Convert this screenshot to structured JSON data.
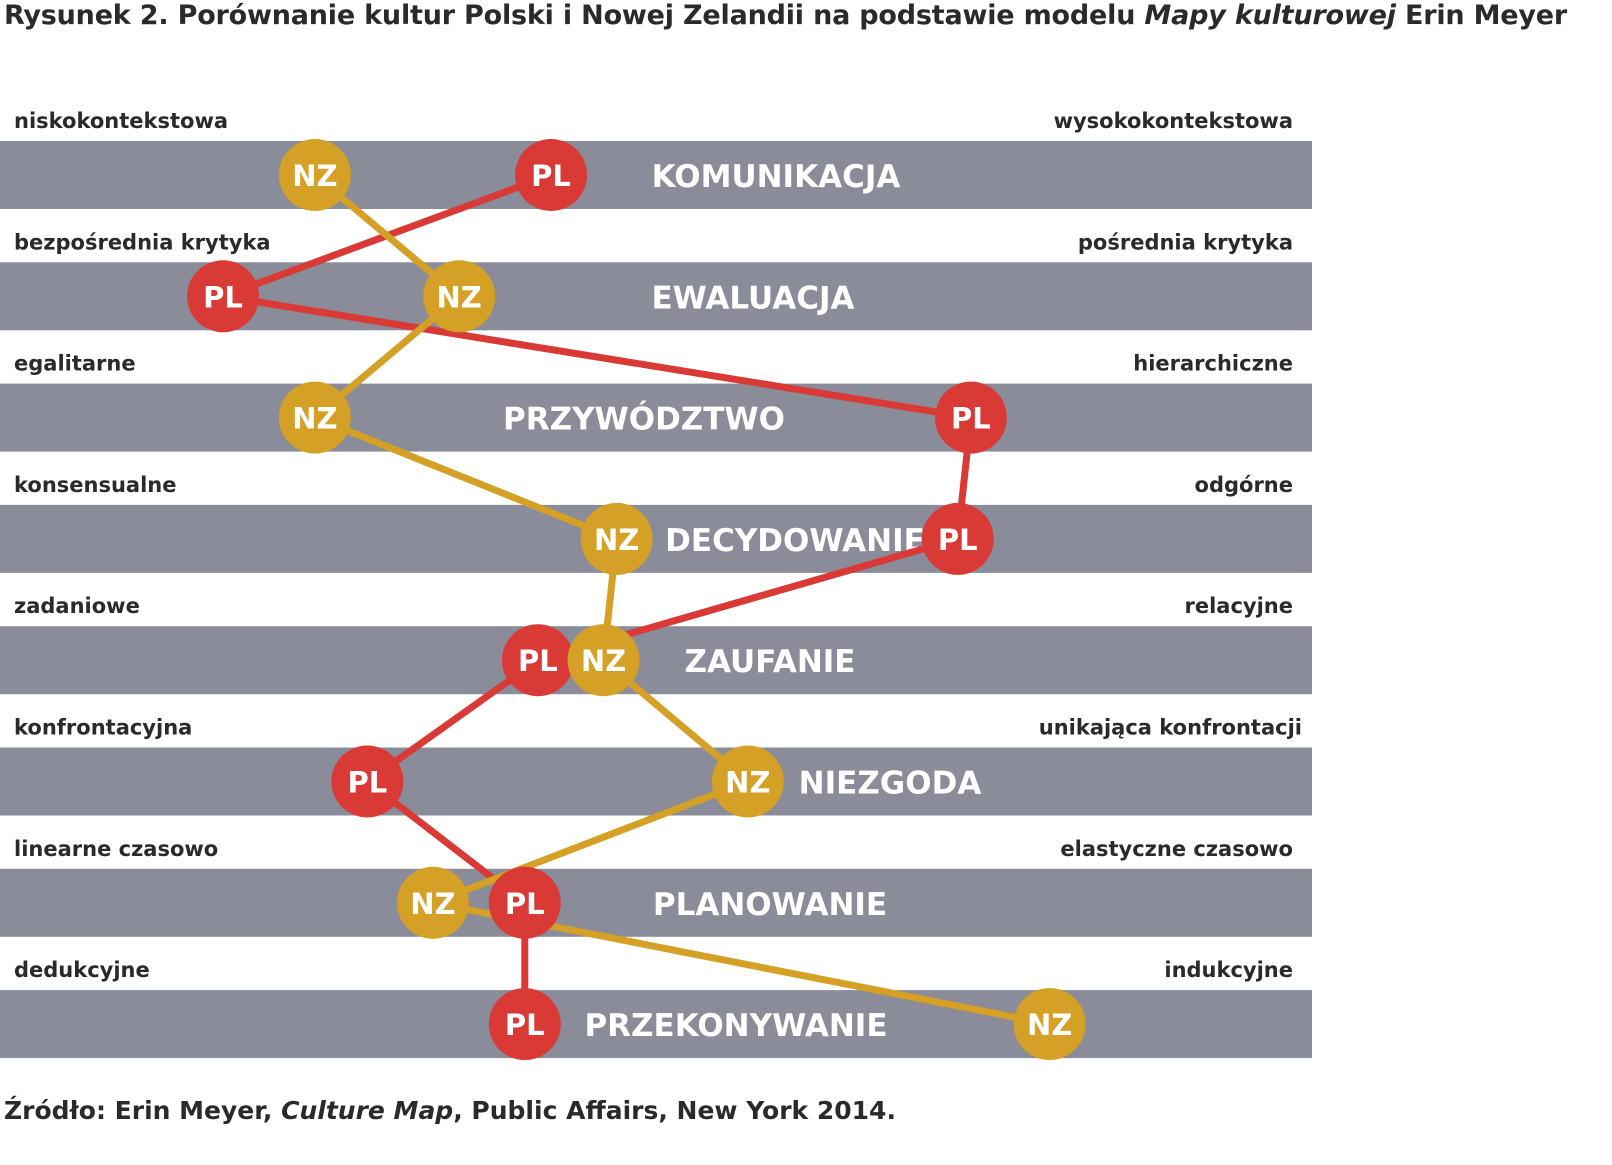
{
  "title": {
    "prefix": "Rysunek 2. Porównanie kultur Polski i Nowej Zelandii na podstawie modelu ",
    "italic": "Mapy kulturowej",
    "suffix": " Erin Meyer"
  },
  "source": {
    "prefix": "Źródło: Erin Meyer, ",
    "italic": "Culture Map",
    "suffix": ", Public Affairs, New York 2014."
  },
  "chart_data": {
    "type": "scatter",
    "subtype": "dot-and-line profile chart",
    "scale": [
      0,
      100
    ],
    "colors": {
      "bar": "#8a8c9a",
      "PL": "#d93a36",
      "NZ": "#d4a025"
    },
    "series": [
      {
        "name": "PL",
        "values": [
          42,
          17,
          74,
          73,
          41,
          28,
          40,
          40
        ]
      },
      {
        "name": "NZ",
        "values": [
          24,
          35,
          24,
          47,
          46,
          57,
          33,
          80
        ]
      }
    ],
    "dimensions": [
      {
        "name": "KOMUNIKACJA",
        "left": "niskokontekstowa",
        "right": "wysokokontekstowa"
      },
      {
        "name": "EWALUACJA",
        "left": "bezpośrednia krytyka",
        "right": "pośrednia krytyka"
      },
      {
        "name": "PRZYWÓDZTWO",
        "left": "egalitarne",
        "right": "hierarchiczne"
      },
      {
        "name": "DECYDOWANIE",
        "left": "konsensualne",
        "right": "odgórne"
      },
      {
        "name": "ZAUFANIE",
        "left": "zadaniowe",
        "right": "relacyjne"
      },
      {
        "name": "NIEZGODA",
        "left": "konfrontacyjna",
        "right": "unikająca konfrontacji"
      },
      {
        "name": "PLANOWANIE",
        "left": "linearne czasowo",
        "right": "elastyczne czasowo"
      },
      {
        "name": "PRZEKONYWANIE",
        "left": "dedukcyjne",
        "right": "indukcyjne"
      }
    ]
  }
}
